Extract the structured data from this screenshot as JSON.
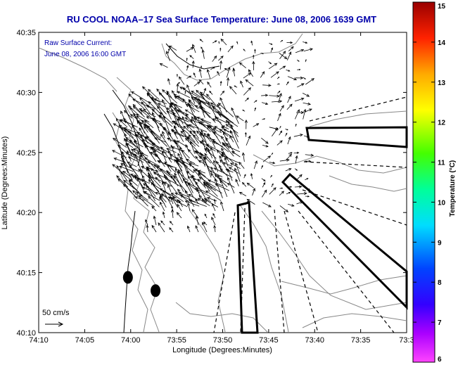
{
  "chart_data": {
    "type": "scatter",
    "title": "RU COOL  NOAA–17  Sea Surface Temperature:  June 08, 2006 1639 GMT",
    "annotation_lines": [
      "Raw Surface Current:",
      "June 08, 2006 16:00 GMT"
    ],
    "xlabel": "Longitude (Degrees:Minutes)",
    "ylabel": "Latitude (Degrees:Minutes)",
    "x_tick_labels": [
      "74:10",
      "74:05",
      "74:00",
      "73:55",
      "73:50",
      "73:45",
      "73:40",
      "73:35",
      "73:3"
    ],
    "y_tick_labels": [
      "40:10",
      "40:15",
      "40:20",
      "40:25",
      "40:30",
      "40:35"
    ],
    "xlim": [
      "74:10",
      "73:30"
    ],
    "ylim": [
      "40:10",
      "40:35"
    ],
    "scale_label": "50 cm/s",
    "colorbar": {
      "label": "Temperature (°C)",
      "tick_labels": [
        "6",
        "7",
        "8",
        "9",
        "10",
        "11",
        "12",
        "13",
        "14",
        "15"
      ],
      "range": [
        6,
        15
      ],
      "colors": [
        "#ff44ff",
        "#8800ff",
        "#0000ff",
        "#0088ff",
        "#00ffff",
        "#00ff66",
        "#55ff00",
        "#ffff00",
        "#ffaa00",
        "#ff3300",
        "#aa0000"
      ]
    },
    "markers": [
      {
        "lon": "74:00.3",
        "lat": "40:14.6"
      },
      {
        "lon": "73:57.3",
        "lat": "40:13.5"
      }
    ]
  }
}
